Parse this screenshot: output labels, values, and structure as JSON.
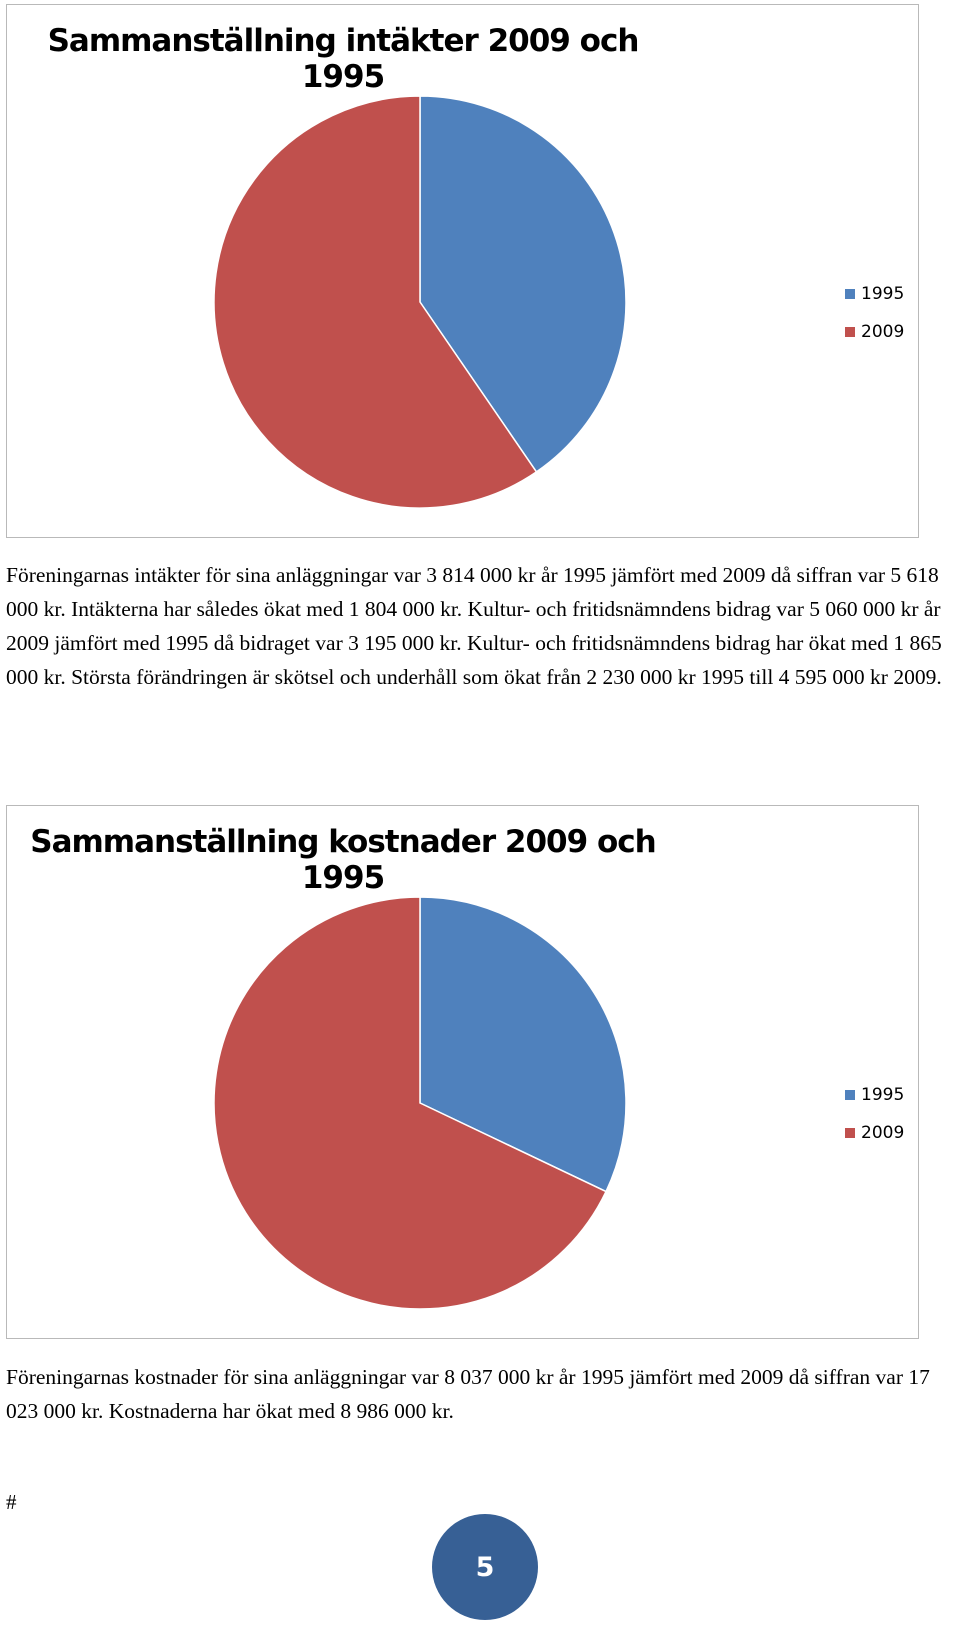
{
  "chart_data": [
    {
      "type": "pie",
      "title": "Sammanställning intäkter 2009 och 1995",
      "categories": [
        "1995",
        "2009"
      ],
      "values": [
        3814000,
        5618000
      ],
      "colors": [
        "#4f81bd",
        "#c0504d"
      ],
      "legend": "right"
    },
    {
      "type": "pie",
      "title": "Sammanställning kostnader 2009 och 1995",
      "categories": [
        "1995",
        "2009"
      ],
      "values": [
        8037000,
        17023000
      ],
      "colors": [
        "#4f81bd",
        "#c0504d"
      ],
      "legend": "right"
    }
  ],
  "paragraphs": {
    "income": "Föreningarnas intäkter för sina anläggningar var 3 814 000 kr år 1995 jämfört med 2009 då siffran var 5 618 000 kr. Intäkterna har således ökat med 1 804 000 kr. Kultur- och fritidsnämndens bidrag var 5 060 000 kr år 2009 jämfört med 1995 då bidraget var 3 195 000 kr. Kultur- och fritidsnämndens bidrag har ökat med 1 865 000 kr. Största förändringen är skötsel och underhåll som ökat från 2 230 000 kr 1995 till 4 595 000 kr 2009.",
    "costs": "Föreningarnas kostnader för sina anläggningar var 8 037 000 kr år 1995 jämfört med 2009 då siffran var 17 023 000 kr. Kostnaderna har ökat med 8 986 000 kr."
  },
  "footer": {
    "hash": "#",
    "page_number": "5"
  }
}
